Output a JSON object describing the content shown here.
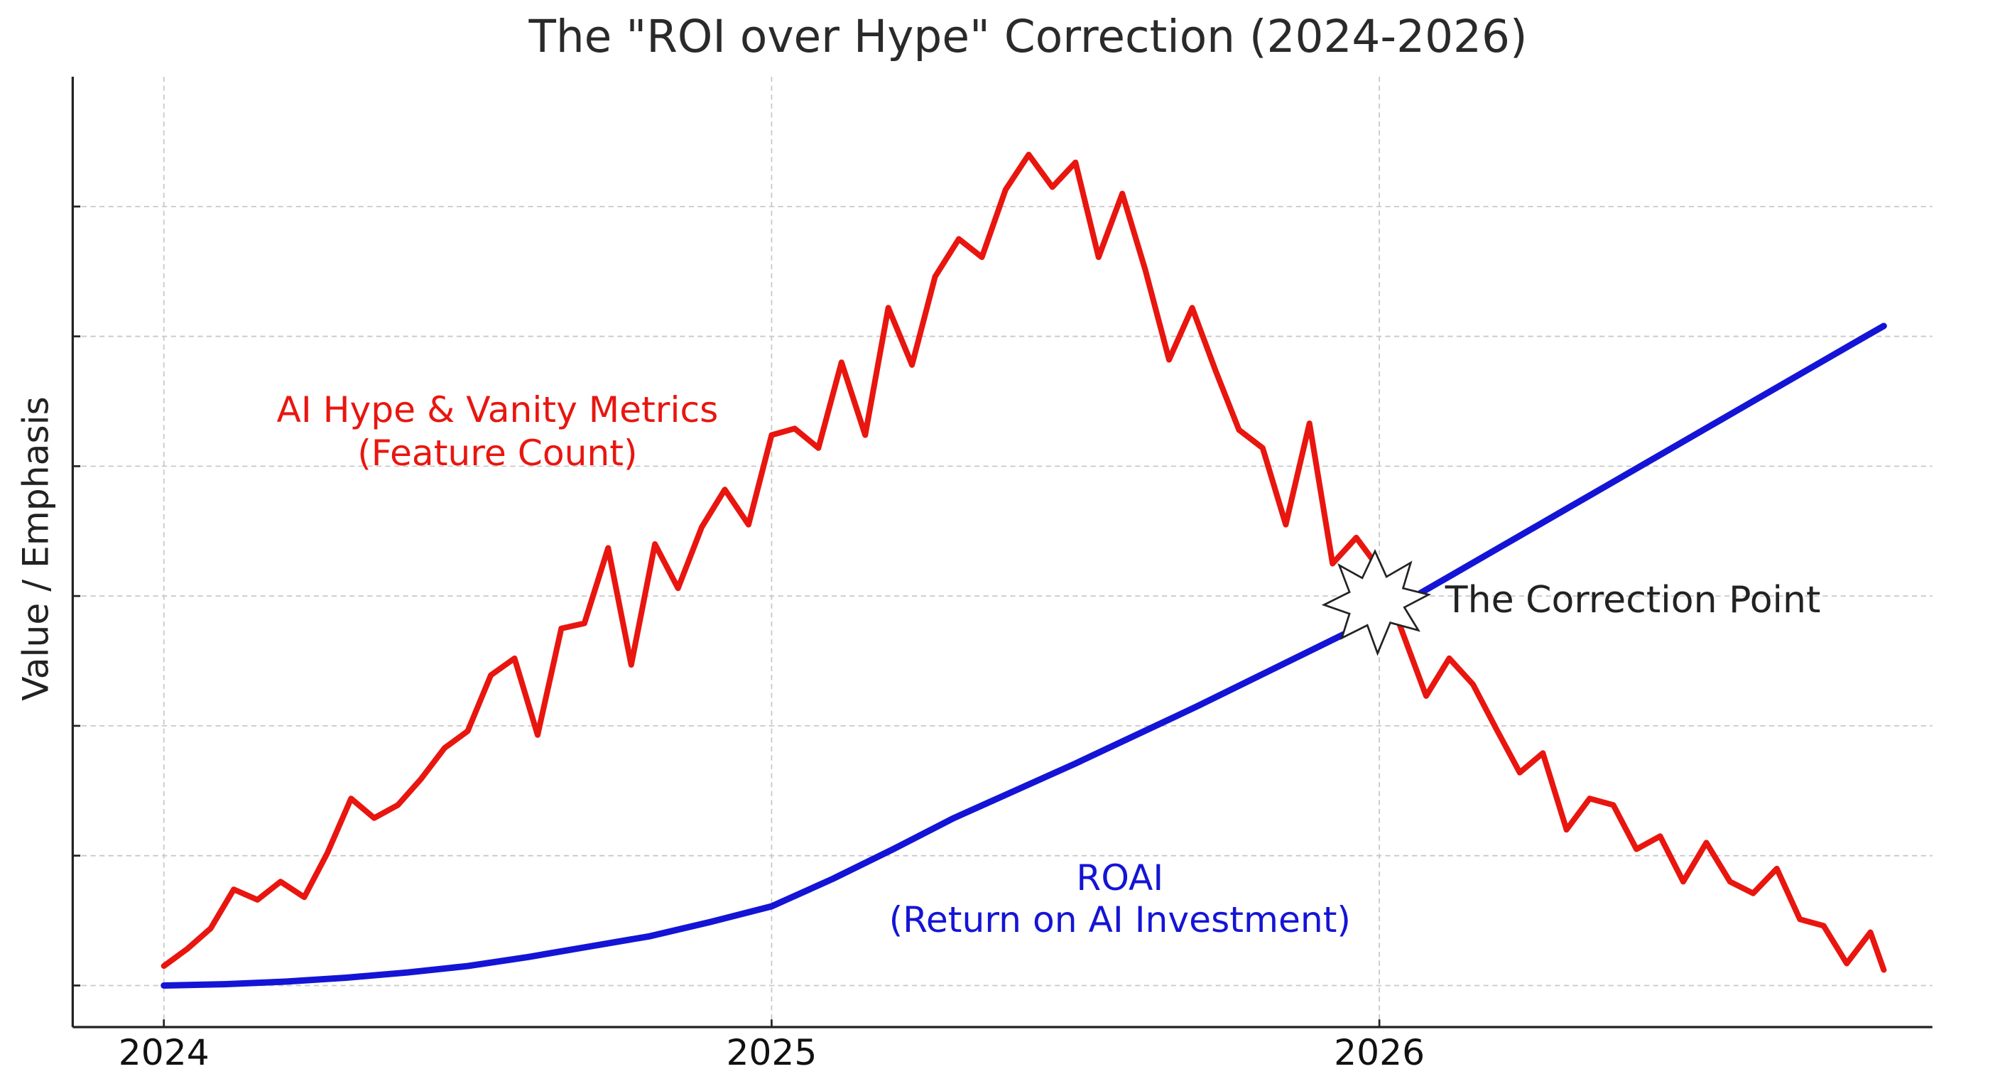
{
  "chart_data": {
    "type": "line",
    "title": "The \"ROI over Hype\" Correction (2024-2026)",
    "y_label": "Value / Emphasis",
    "xlim": [
      2023.85,
      2026.91
    ],
    "xticks": [
      2024,
      2025,
      2026
    ],
    "ylim": [
      -0.32,
      7
    ],
    "yticks": [
      0,
      1,
      2,
      3,
      4,
      5,
      6
    ],
    "show_ytick_labels": false,
    "grid": true,
    "series": [
      {
        "color": "#e8160f",
        "label": [
          "AI Hype & Vanity Metrics",
          "(Feature Count)"
        ],
        "x": [
          2024,
          2024.038,
          2024.077,
          2024.115,
          2024.154,
          2024.192,
          2024.231,
          2024.269,
          2024.308,
          2024.346,
          2024.385,
          2024.423,
          2024.462,
          2024.5,
          2024.538,
          2024.577,
          2024.615,
          2024.654,
          2024.692,
          2024.731,
          2024.769,
          2024.808,
          2024.846,
          2024.885,
          2024.923,
          2024.962,
          2025,
          2025.038,
          2025.077,
          2025.115,
          2025.154,
          2025.192,
          2025.231,
          2025.269,
          2025.308,
          2025.346,
          2025.385,
          2025.423,
          2025.462,
          2025.5,
          2025.538,
          2025.577,
          2025.615,
          2025.654,
          2025.692,
          2025.731,
          2025.769,
          2025.808,
          2025.846,
          2025.885,
          2025.923,
          2025.962,
          2026,
          2026.038,
          2026.077,
          2026.115,
          2026.154,
          2026.192,
          2026.231,
          2026.269,
          2026.308,
          2026.346,
          2026.385,
          2026.423,
          2026.462,
          2026.5,
          2026.538,
          2026.577,
          2026.615,
          2026.654,
          2026.692,
          2026.731,
          2026.769,
          2026.808,
          2026.83
        ],
        "values": [
          0.15,
          0.28,
          0.44,
          0.74,
          0.66,
          0.8,
          0.68,
          1.02,
          1.44,
          1.29,
          1.39,
          1.59,
          1.83,
          1.96,
          2.39,
          2.52,
          1.93,
          2.75,
          2.79,
          3.37,
          2.47,
          3.4,
          3.06,
          3.53,
          3.82,
          3.55,
          4.24,
          4.29,
          4.14,
          4.8,
          4.24,
          5.22,
          4.78,
          5.46,
          5.75,
          5.61,
          6.13,
          6.4,
          6.15,
          6.34,
          5.61,
          6.1,
          5.51,
          4.82,
          5.22,
          4.73,
          4.28,
          4.14,
          3.55,
          4.33,
          3.25,
          3.45,
          3.21,
          2.72,
          2.23,
          2.52,
          2.32,
          1.98,
          1.64,
          1.79,
          1.2,
          1.44,
          1.39,
          1.05,
          1.15,
          0.8,
          1.1,
          0.8,
          0.71,
          0.9,
          0.51,
          0.46,
          0.17,
          0.41,
          0.12
        ]
      },
      {
        "color": "#1414d6",
        "label": [
          "ROAI",
          "(Return on AI Investment)"
        ],
        "x": [
          2024,
          2024.1,
          2024.2,
          2024.3,
          2024.4,
          2024.5,
          2024.6,
          2024.7,
          2024.8,
          2024.9,
          2025,
          2025.1,
          2025.2,
          2025.3,
          2025.4,
          2025.5,
          2025.6,
          2025.7,
          2025.8,
          2025.9,
          2026,
          2026.1,
          2026.2,
          2026.3,
          2026.4,
          2026.5,
          2026.6,
          2026.7,
          2026.8,
          2026.83
        ],
        "values": [
          0,
          0.01,
          0.03,
          0.06,
          0.1,
          0.15,
          0.22,
          0.3,
          0.38,
          0.49,
          0.61,
          0.82,
          1.05,
          1.29,
          1.5,
          1.71,
          1.93,
          2.15,
          2.38,
          2.61,
          2.84,
          3.11,
          3.38,
          3.65,
          3.92,
          4.19,
          4.46,
          4.73,
          5.0,
          5.08
        ]
      }
    ],
    "annotation": "The Correction Point"
  }
}
